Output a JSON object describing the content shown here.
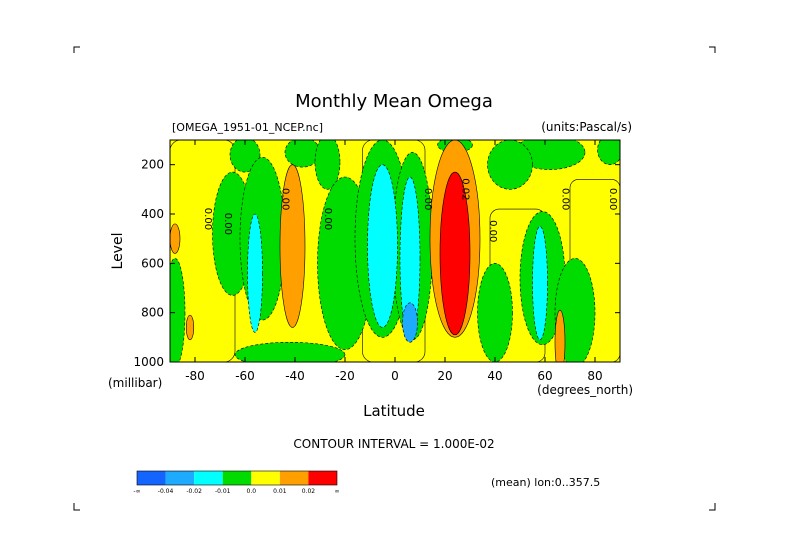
{
  "header": {
    "title": "Monthly Mean Omega",
    "file_label": "[OMEGA_1951-01_NCEP.nc]",
    "units_label": "(units:Pascal/s)"
  },
  "footer": {
    "contour_interval": "CONTOUR INTERVAL = 1.000E-02",
    "mean_note": "(mean) lon:0..357.5"
  },
  "chart_data": {
    "type": "heatmap",
    "title": "Monthly Mean Omega",
    "xlabel": "Latitude",
    "x_unit": "(degrees_north)",
    "ylabel": "Level",
    "y_unit": "(millibar)",
    "xlim": [
      -90,
      90
    ],
    "ylim": [
      1000,
      100
    ],
    "y_inverted": true,
    "grid": false,
    "x_ticks": [
      "-80",
      "-60",
      "-40",
      "-20",
      "0",
      "20",
      "40",
      "60",
      "80"
    ],
    "y_ticks": [
      "200",
      "400",
      "600",
      "800",
      "1000"
    ],
    "contour_interval": 0.01,
    "colorbar": {
      "orientation": "horizontal",
      "colors": [
        "#1464ff",
        "#1eaaff",
        "#00ffff",
        "#00dc00",
        "#ffff00",
        "#ffa000",
        "#ff0000"
      ],
      "labels": [
        "-∞",
        "-0.04",
        "-0.02",
        "-0.01",
        "0.0",
        "0.01",
        "0.02",
        "∞"
      ]
    },
    "contour_labels": [
      {
        "text": "0.00",
        "lat": -76,
        "lev": 420
      },
      {
        "text": "0.00",
        "lat": -68,
        "lev": 440
      },
      {
        "text": "0.00",
        "lat": -45,
        "lev": 340
      },
      {
        "text": "0.00",
        "lat": -28,
        "lev": 420
      },
      {
        "text": "0.00",
        "lat": 12,
        "lev": 340
      },
      {
        "text": "0.02",
        "lat": 27,
        "lev": 300
      },
      {
        "text": "0.00",
        "lat": 38,
        "lev": 470
      },
      {
        "text": "0.00",
        "lat": 67,
        "lev": 340
      },
      {
        "text": "0.00",
        "lat": 86,
        "lev": 340
      }
    ],
    "regions": [
      {
        "bin": "0.0",
        "kind": "band",
        "lat_min": -90,
        "lat_max": -64,
        "lev_min": 100,
        "lev_max": 1000
      },
      {
        "bin": "0.0",
        "kind": "band",
        "lat_min": -13,
        "lat_max": 12,
        "lev_min": 100,
        "lev_max": 1000
      },
      {
        "bin": "0.0",
        "kind": "band",
        "lat_min": 38,
        "lat_max": 60,
        "lev_min": 380,
        "lev_max": 1000
      },
      {
        "bin": "0.0",
        "kind": "band",
        "lat_min": 70,
        "lat_max": 90,
        "lev_min": 260,
        "lev_max": 1000
      },
      {
        "bin": "-0.01",
        "kind": "blob",
        "lat": -60,
        "lev": 160,
        "dlat": 6,
        "dlev": 70
      },
      {
        "bin": "-0.01",
        "kind": "blob",
        "lat": -37,
        "lev": 150,
        "dlat": 7,
        "dlev": 60
      },
      {
        "bin": "-0.01",
        "kind": "blob",
        "lat": -27,
        "lev": 190,
        "dlat": 5,
        "dlev": 110
      },
      {
        "bin": "-0.01",
        "kind": "blob",
        "lat": -42,
        "lev": 970,
        "dlat": 22,
        "dlev": 50
      },
      {
        "bin": "-0.01",
        "kind": "blob",
        "lat": 24,
        "lev": 120,
        "dlat": 7,
        "dlev": 30
      },
      {
        "bin": "-0.01",
        "kind": "blob",
        "lat": 62,
        "lev": 150,
        "dlat": 14,
        "dlev": 70
      },
      {
        "bin": "-0.01",
        "kind": "blob",
        "lat": 46,
        "lev": 200,
        "dlat": 9,
        "dlev": 100
      },
      {
        "bin": "-0.01",
        "kind": "blob",
        "lat": -88,
        "lev": 800,
        "dlat": 4,
        "dlev": 220
      },
      {
        "bin": "-0.01",
        "kind": "blob",
        "lat": 86,
        "lev": 140,
        "dlat": 5,
        "dlev": 60
      },
      {
        "bin": "-0.01",
        "kind": "blob",
        "lat": -65,
        "lev": 480,
        "dlat": 8,
        "dlev": 250
      },
      {
        "bin": "-0.01",
        "kind": "blob",
        "lat": -53,
        "lev": 500,
        "dlat": 9,
        "dlev": 330
      },
      {
        "bin": "-0.01",
        "kind": "blob",
        "lat": -20,
        "lev": 600,
        "dlat": 11,
        "dlev": 350
      },
      {
        "bin": "-0.01",
        "kind": "blob",
        "lat": -5,
        "lev": 500,
        "dlat": 11,
        "dlev": 400
      },
      {
        "bin": "-0.01",
        "kind": "blob",
        "lat": 7,
        "lev": 530,
        "dlat": 8,
        "dlev": 380
      },
      {
        "bin": "-0.01",
        "kind": "blob",
        "lat": 40,
        "lev": 800,
        "dlat": 7,
        "dlev": 200
      },
      {
        "bin": "-0.01",
        "kind": "blob",
        "lat": 59,
        "lev": 660,
        "dlat": 9,
        "dlev": 270
      },
      {
        "bin": "-0.01",
        "kind": "blob",
        "lat": 72,
        "lev": 800,
        "dlat": 8,
        "dlev": 220
      },
      {
        "bin": "-0.02",
        "kind": "blob",
        "lat": -56,
        "lev": 640,
        "dlat": 3,
        "dlev": 240
      },
      {
        "bin": "-0.02",
        "kind": "blob",
        "lat": -5,
        "lev": 530,
        "dlat": 6,
        "dlev": 330
      },
      {
        "bin": "-0.02",
        "kind": "blob",
        "lat": 6,
        "lev": 580,
        "dlat": 4,
        "dlev": 330
      },
      {
        "bin": "-0.02",
        "kind": "blob",
        "lat": 58,
        "lev": 680,
        "dlat": 3,
        "dlev": 230
      },
      {
        "bin": "-0.04",
        "kind": "blob",
        "lat": 6,
        "lev": 840,
        "dlat": 3,
        "dlev": 80
      },
      {
        "bin": "0.01",
        "kind": "blob",
        "lat": -88,
        "lev": 500,
        "dlat": 2,
        "dlev": 60
      },
      {
        "bin": "0.01",
        "kind": "blob",
        "lat": -41,
        "lev": 530,
        "dlat": 5,
        "dlev": 330
      },
      {
        "bin": "0.01",
        "kind": "blob",
        "lat": 24,
        "lev": 500,
        "dlat": 10,
        "dlev": 400
      },
      {
        "bin": "0.01",
        "kind": "blob",
        "lat": 66,
        "lev": 920,
        "dlat": 2,
        "dlev": 130
      },
      {
        "bin": "0.01",
        "kind": "blob",
        "lat": -82,
        "lev": 860,
        "dlat": 1.5,
        "dlev": 50
      },
      {
        "bin": "0.02",
        "kind": "blob",
        "lat": 24,
        "lev": 560,
        "dlat": 6,
        "dlev": 330
      }
    ]
  }
}
